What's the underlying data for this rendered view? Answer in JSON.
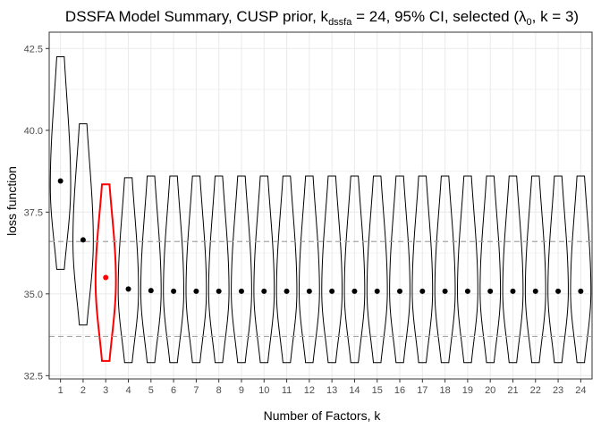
{
  "chart_data": {
    "type": "violin",
    "title": {
      "prefix": "DSSFA Model Summary, CUSP prior, k",
      "subscript": "dssfa",
      "middle": " = 24, 95% CI, selected (λ",
      "lambda_subscript": "0",
      "suffix": ", k = 3)"
    },
    "xlabel": "Number of Factors, k",
    "ylabel": "loss function",
    "ylim": [
      32.4,
      43.0
    ],
    "yticks": [
      "32.5",
      "35.0",
      "37.5",
      "40.0",
      "42.5"
    ],
    "ytick_values": [
      32.5,
      35.0,
      37.5,
      40.0,
      42.5
    ],
    "categories": [
      "1",
      "2",
      "3",
      "4",
      "5",
      "6",
      "7",
      "8",
      "9",
      "10",
      "11",
      "12",
      "13",
      "14",
      "15",
      "16",
      "17",
      "18",
      "19",
      "20",
      "21",
      "22",
      "23",
      "24"
    ],
    "means": [
      38.45,
      36.65,
      35.5,
      35.15,
      35.1,
      35.08,
      35.08,
      35.08,
      35.08,
      35.08,
      35.08,
      35.08,
      35.08,
      35.08,
      35.08,
      35.08,
      35.08,
      35.08,
      35.08,
      35.08,
      35.08,
      35.08,
      35.08,
      35.08
    ],
    "violins": [
      {
        "min": 35.75,
        "max": 42.25,
        "mode": 38.3
      },
      {
        "min": 34.05,
        "max": 40.2,
        "mode": 36.6
      },
      {
        "min": 32.95,
        "max": 38.35,
        "mode": 35.4
      },
      {
        "min": 32.9,
        "max": 38.55,
        "mode": 35.1
      },
      {
        "min": 32.9,
        "max": 38.6,
        "mode": 35.08
      },
      {
        "min": 32.9,
        "max": 38.6,
        "mode": 35.08
      },
      {
        "min": 32.9,
        "max": 38.6,
        "mode": 35.08
      },
      {
        "min": 32.9,
        "max": 38.6,
        "mode": 35.08
      },
      {
        "min": 32.9,
        "max": 38.6,
        "mode": 35.08
      },
      {
        "min": 32.9,
        "max": 38.6,
        "mode": 35.08
      },
      {
        "min": 32.9,
        "max": 38.6,
        "mode": 35.08
      },
      {
        "min": 32.9,
        "max": 38.6,
        "mode": 35.08
      },
      {
        "min": 32.9,
        "max": 38.6,
        "mode": 35.08
      },
      {
        "min": 32.9,
        "max": 38.6,
        "mode": 35.08
      },
      {
        "min": 32.9,
        "max": 38.6,
        "mode": 35.08
      },
      {
        "min": 32.9,
        "max": 38.6,
        "mode": 35.08
      },
      {
        "min": 32.9,
        "max": 38.6,
        "mode": 35.08
      },
      {
        "min": 32.9,
        "max": 38.6,
        "mode": 35.08
      },
      {
        "min": 32.9,
        "max": 38.6,
        "mode": 35.08
      },
      {
        "min": 32.9,
        "max": 38.6,
        "mode": 35.08
      },
      {
        "min": 32.9,
        "max": 38.6,
        "mode": 35.08
      },
      {
        "min": 32.9,
        "max": 38.6,
        "mode": 35.08
      },
      {
        "min": 32.9,
        "max": 38.6,
        "mode": 35.08
      },
      {
        "min": 32.9,
        "max": 38.6,
        "mode": 35.08
      }
    ],
    "selected_index": 2,
    "reference_lines": [
      36.6,
      33.7
    ],
    "grid": true,
    "legend": "none",
    "colors": {
      "default": "#000000",
      "selected": "#ff0000",
      "reference_line": "#a6a6a6",
      "grid": "#ebebeb",
      "panel_border": "#333333"
    }
  }
}
